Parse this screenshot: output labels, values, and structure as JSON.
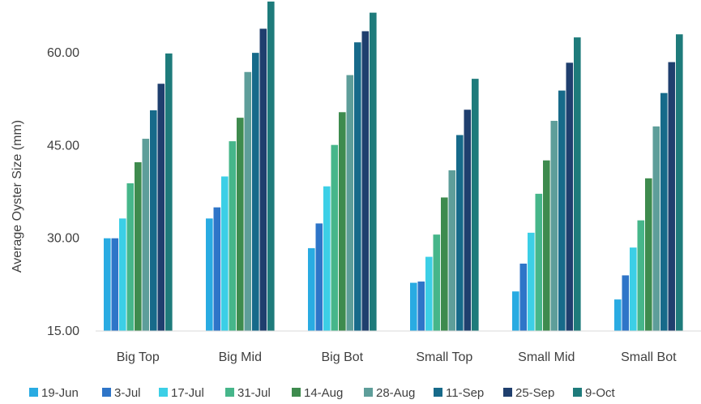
{
  "chart_data": {
    "type": "bar",
    "title": "",
    "xlabel": "",
    "ylabel": "Average Oyster Size (mm)",
    "ylim": [
      15,
      67.5
    ],
    "yticks": [
      "15.00",
      "30.00",
      "45.00",
      "60.00"
    ],
    "ytick_values": [
      15,
      30,
      45,
      60
    ],
    "grid": false,
    "legend_position": "bottom",
    "categories": [
      "Big Top",
      "Big Mid",
      "Big Bot",
      "Small Top",
      "Small Mid",
      "Small Bot"
    ],
    "series": [
      {
        "name": "19-Jun",
        "color": "#29ABE2",
        "values": [
          30.0,
          33.2,
          28.4,
          22.8,
          21.4,
          20.1
        ]
      },
      {
        "name": "3-Jul",
        "color": "#2E75C8",
        "values": [
          30.0,
          35.0,
          32.4,
          23.0,
          25.9,
          24.0
        ]
      },
      {
        "name": "17-Jul",
        "color": "#3CCFE6",
        "values": [
          33.2,
          40.0,
          38.4,
          27.0,
          30.9,
          28.5
        ]
      },
      {
        "name": "31-Jul",
        "color": "#46B68A",
        "values": [
          38.9,
          45.7,
          45.1,
          30.6,
          37.2,
          32.9
        ]
      },
      {
        "name": "14-Aug",
        "color": "#3E8B4E",
        "values": [
          42.3,
          49.5,
          50.4,
          36.6,
          42.6,
          39.7
        ]
      },
      {
        "name": "28-Aug",
        "color": "#5E9E9A",
        "values": [
          46.1,
          56.9,
          56.4,
          41.0,
          49.0,
          48.1
        ]
      },
      {
        "name": "11-Sep",
        "color": "#176A8A",
        "values": [
          50.7,
          60.0,
          61.7,
          46.7,
          53.9,
          53.5
        ]
      },
      {
        "name": "25-Sep",
        "color": "#1F3F6E",
        "values": [
          55.0,
          63.9,
          63.5,
          50.8,
          58.4,
          58.5
        ]
      },
      {
        "name": "9-Oct",
        "color": "#1E7B7B",
        "values": [
          59.9,
          68.3,
          66.5,
          55.8,
          62.5,
          63.0
        ]
      }
    ]
  }
}
